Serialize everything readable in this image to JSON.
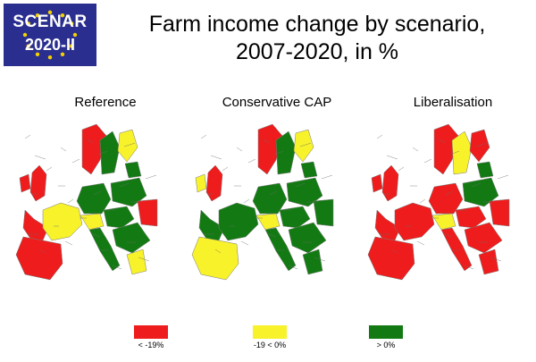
{
  "logo": {
    "line1": "SCENAR",
    "line2": "2020-II",
    "background": "#2a2f8f",
    "star_color": "#f5d000"
  },
  "title": {
    "line1": "Farm income change by scenario,",
    "line2": "2007-2020, in %"
  },
  "maps": [
    {
      "label": "Reference",
      "mix": "mixed"
    },
    {
      "label": "Conservative CAP",
      "mix": "mostly-positive"
    },
    {
      "label": "Liberalisation",
      "mix": "mostly-negative"
    }
  ],
  "legend": [
    {
      "label": "< -19%",
      "color": "#ee1c1c"
    },
    {
      "label": "-19 < 0%",
      "color": "#f7f22a"
    },
    {
      "label": "> 0%",
      "color": "#137a13"
    }
  ]
}
